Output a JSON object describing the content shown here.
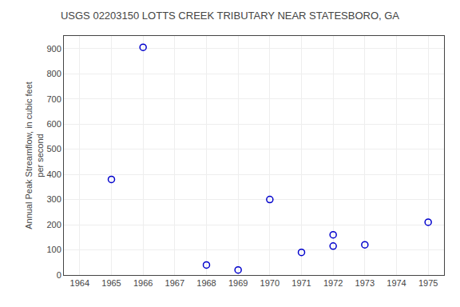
{
  "chart_data": {
    "type": "scatter",
    "title": "USGS 02203150 LOTTS CREEK TRIBUTARY NEAR STATESBORO, GA",
    "ylabel": "Annual Peak Streamflow, in cubic feet\nper second",
    "x": [
      1965,
      1966,
      1968,
      1969,
      1970,
      1971,
      1972,
      1972,
      1973,
      1975
    ],
    "values": [
      380,
      905,
      40,
      20,
      300,
      90,
      160,
      115,
      120,
      210
    ],
    "color": "#0000cc",
    "marker": "circle-open",
    "xlim": [
      1963.5,
      1975.5
    ],
    "ylim": [
      0,
      950
    ],
    "xticks": [
      1964,
      1965,
      1966,
      1967,
      1968,
      1969,
      1970,
      1971,
      1972,
      1973,
      1974,
      1975
    ],
    "yticks": [
      0,
      100,
      200,
      300,
      400,
      500,
      600,
      700,
      800,
      900
    ],
    "grid": true
  }
}
